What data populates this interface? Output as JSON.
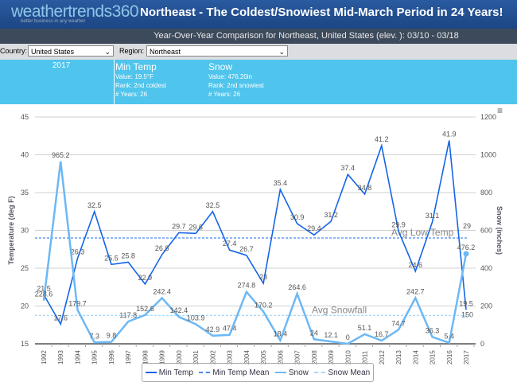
{
  "header": {
    "logo": "weathertrends360",
    "tagline": "better business in any weather",
    "title": "Northeast - The Coldest/Snowiest Mid-March Period in 24 Years!"
  },
  "subtitle": "Year-Over-Year Comparison for Northeast, United States (elev. ): 03/10 - 03/18",
  "controls": {
    "country_label": "Country:",
    "country_value": "United States",
    "region_label": "Region:",
    "region_value": "Northeast"
  },
  "info": {
    "year": "2017",
    "min_temp": {
      "title": "Min Temp",
      "value": "Value: 19.5°F",
      "rank": "Rank: 2nd coldest",
      "years": "# Years: 26"
    },
    "snow": {
      "title": "Snow",
      "value": "Value: 476.20in",
      "rank": "Rank: 2nd snowiest",
      "years": "# Years: 26"
    }
  },
  "menu_icon": "hamburger-icon",
  "chart_data": {
    "type": "line",
    "x": [
      "1992",
      "1993",
      "1994",
      "1995",
      "1996",
      "1997",
      "1998",
      "1999",
      "2000",
      "2001",
      "2002",
      "2003",
      "2004",
      "2005",
      "2006",
      "2007",
      "2008",
      "2009",
      "2010",
      "2011",
      "2012",
      "2013",
      "2014",
      "2015",
      "2016",
      "2017"
    ],
    "series": [
      {
        "name": "Min Temp",
        "axis": "left",
        "color": "#1565e8",
        "values": [
          21.5,
          17.6,
          26.3,
          32.5,
          25.5,
          25.8,
          22.9,
          26.8,
          29.7,
          29.6,
          32.5,
          27.4,
          26.7,
          23,
          35.4,
          30.9,
          29.4,
          31.2,
          37.4,
          34.8,
          41.2,
          29.9,
          24.6,
          31.1,
          41.9,
          19.5
        ]
      },
      {
        "name": "Snow",
        "axis": "right",
        "color": "#6cb8f5",
        "values": [
          228.6,
          965.2,
          179.7,
          7.3,
          9.8,
          117.8,
          152.6,
          242.4,
          142.4,
          103.9,
          42.9,
          47.4,
          274.8,
          170.2,
          18.4,
          264.6,
          24,
          12.1,
          0,
          51.1,
          16.7,
          74.7,
          242.7,
          36.3,
          5.4,
          476.2
        ]
      }
    ],
    "means": [
      {
        "name": "Min Temp Mean",
        "axis": "left",
        "value": 29,
        "label": "Avg Low Temp",
        "end_label": "29",
        "color": "#4a8af0"
      },
      {
        "name": "Snow Mean",
        "axis": "right",
        "value": 150,
        "label": "Avg Snowfall",
        "end_label": "150",
        "color": "#a8d8fb"
      }
    ],
    "ylabel": "Temperature (deg F)",
    "y2label": "Snow (inches)",
    "ylim": [
      15,
      45
    ],
    "yticks": [
      "15",
      "20",
      "25",
      "30",
      "35",
      "40",
      "45"
    ],
    "y2lim": [
      0,
      1200
    ],
    "y2ticks": [
      "0",
      "200",
      "400",
      "600",
      "800",
      "1000",
      "1200"
    ],
    "legend": [
      "Min Temp",
      "Min Temp Mean",
      "Snow",
      "Snow Mean"
    ],
    "legend_position": "bottom"
  }
}
